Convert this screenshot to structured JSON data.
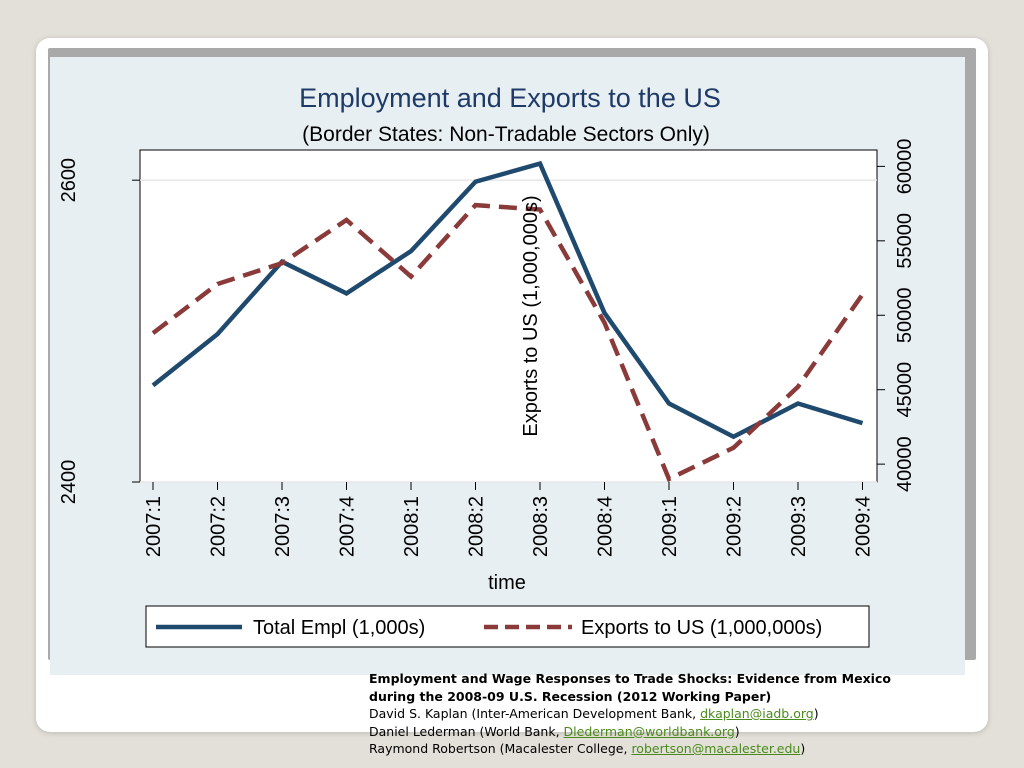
{
  "chart_data": {
    "type": "line",
    "title": "Employment and Exports to the US",
    "subtitle": "(Border States: Non-Tradable Sectors Only)",
    "xlabel": "time",
    "ylabel_right": "Exports to US (1,000,000s)",
    "categories": [
      "2007:1",
      "2007:2",
      "2007:3",
      "2007:4",
      "2008:1",
      "2008:2",
      "2008:3",
      "2008:4",
      "2009:1",
      "2009:2",
      "2009:3",
      "2009:4"
    ],
    "left_axis": {
      "ticks": [
        "2400",
        "2600"
      ],
      "tick_values": [
        2400,
        2600
      ],
      "range": [
        2400,
        2620
      ]
    },
    "right_axis": {
      "ticks": [
        "40000",
        "45000",
        "50000",
        "55000",
        "60000"
      ],
      "tick_values": [
        40000,
        45000,
        50000,
        55000,
        60000
      ],
      "range": [
        38800,
        61100
      ]
    },
    "series": [
      {
        "name": "Total Empl (1,000s)",
        "axis": "left",
        "color": "#1f4a6e",
        "style": "solid",
        "values": [
          2464,
          2498,
          2546,
          2525,
          2553,
          2599,
          2611,
          2512,
          2452,
          2430,
          2452,
          2439
        ]
      },
      {
        "name": "Exports to US (1,000,000s)",
        "axis": "right",
        "color": "#8b3a3a",
        "style": "dashed",
        "values": [
          48800,
          52100,
          53500,
          56400,
          52600,
          57400,
          57100,
          49500,
          39000,
          41100,
          45200,
          51400
        ]
      }
    ],
    "grid": true,
    "legend_position": "bottom"
  },
  "caption": {
    "line1": "Employment and Wage Responses to Trade Shocks: Evidence from Mexico",
    "line2": "during the 2008-09 U.S. Recession  (2012 Working Paper)",
    "authors": [
      {
        "prefix": "David S. Kaplan (Inter-American Development Bank, ",
        "email": "dkaplan@iadb.org",
        "suffix": ")"
      },
      {
        "prefix": "Daniel Lederman (World Bank, ",
        "email": "Dlederman@worldbank.org",
        "suffix": ")"
      },
      {
        "prefix": "Raymond Robertson (Macalester College, ",
        "email": "robertson@macalester.edu",
        "suffix": ")"
      }
    ]
  }
}
